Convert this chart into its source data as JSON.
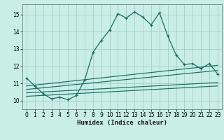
{
  "xlabel": "Humidex (Indice chaleur)",
  "background_color": "#c8eee6",
  "grid_color": "#a8cccc",
  "line_color": "#1a6e60",
  "xlim": [
    -0.5,
    23.5
  ],
  "ylim": [
    9.5,
    15.6
  ],
  "yticks": [
    10,
    11,
    12,
    13,
    14,
    15
  ],
  "xticks": [
    0,
    1,
    2,
    3,
    4,
    5,
    6,
    7,
    8,
    9,
    10,
    11,
    12,
    13,
    14,
    15,
    16,
    17,
    18,
    19,
    20,
    21,
    22,
    23
  ],
  "main_y": [
    11.3,
    10.85,
    10.4,
    10.1,
    10.2,
    10.05,
    10.3,
    11.2,
    12.8,
    13.5,
    14.1,
    15.05,
    14.8,
    15.15,
    14.85,
    14.4,
    15.1,
    13.75,
    12.65,
    12.1,
    12.15,
    11.85,
    12.15,
    11.55
  ],
  "trend_lines": [
    {
      "x": [
        0,
        23
      ],
      "y": [
        10.85,
        12.05
      ]
    },
    {
      "x": [
        0,
        23
      ],
      "y": [
        10.65,
        11.75
      ]
    },
    {
      "x": [
        0,
        23
      ],
      "y": [
        10.45,
        11.05
      ]
    },
    {
      "x": [
        0,
        23
      ],
      "y": [
        10.25,
        10.85
      ]
    }
  ]
}
